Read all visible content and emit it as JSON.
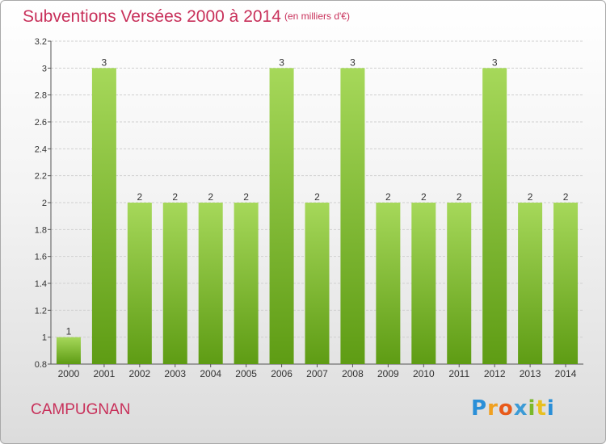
{
  "header": {
    "title": "Subventions Versées 2000 à 2014",
    "subtitle": "(en milliers d'€)"
  },
  "footer": {
    "commune": "CAMPUGNAN",
    "logo_text": "Proxiti",
    "logo_letters": [
      "P",
      "r",
      "o",
      "x",
      "i",
      "t",
      "i"
    ]
  },
  "colors": {
    "title": "#c8305a",
    "bar_light": "#a6d85a",
    "bar_dark": "#5e9c14"
  },
  "chart_data": {
    "type": "bar",
    "title": "Subventions Versées 2000 à 2014",
    "subtitle": "(en milliers d'€)",
    "categories": [
      "2000",
      "2001",
      "2002",
      "2003",
      "2004",
      "2005",
      "2006",
      "2007",
      "2008",
      "2009",
      "2010",
      "2011",
      "2012",
      "2013",
      "2014"
    ],
    "values": [
      1,
      3,
      2,
      2,
      2,
      2,
      3,
      2,
      3,
      2,
      2,
      2,
      3,
      2,
      2
    ],
    "value_labels": [
      "1",
      "3",
      "2",
      "2",
      "2",
      "2",
      "3",
      "2",
      "3",
      "2",
      "2",
      "2",
      "3",
      "2",
      "2"
    ],
    "bar_heights": [
      1.0,
      3.0,
      2.0,
      2.0,
      2.0,
      2.0,
      3.0,
      2.0,
      3.0,
      2.0,
      2.0,
      2.0,
      3.0,
      2.0,
      2.0
    ],
    "yticks": [
      0.8,
      1,
      1.2,
      1.4,
      1.6,
      1.8,
      2,
      2.2,
      2.4,
      2.6,
      2.8,
      3,
      3.2
    ],
    "ytick_labels": [
      "0.8",
      "1",
      "1.2",
      "1.4",
      "1.6",
      "1.8",
      "2",
      "2.2",
      "2.4",
      "2.6",
      "2.8",
      "3",
      "3.2"
    ],
    "ylim": [
      0.8,
      3.2
    ],
    "xlabel": "",
    "ylabel": "",
    "grid": true
  }
}
